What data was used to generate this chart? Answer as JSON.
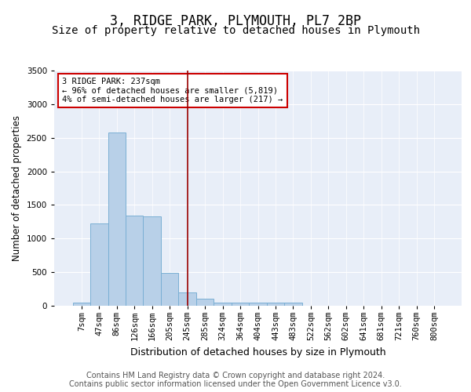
{
  "title": "3, RIDGE PARK, PLYMOUTH, PL7 2BP",
  "subtitle": "Size of property relative to detached houses in Plymouth",
  "xlabel": "Distribution of detached houses by size in Plymouth",
  "ylabel": "Number of detached properties",
  "categories": [
    "7sqm",
    "47sqm",
    "86sqm",
    "126sqm",
    "166sqm",
    "205sqm",
    "245sqm",
    "285sqm",
    "324sqm",
    "364sqm",
    "404sqm",
    "443sqm",
    "483sqm",
    "522sqm",
    "562sqm",
    "602sqm",
    "641sqm",
    "681sqm",
    "721sqm",
    "760sqm",
    "800sqm"
  ],
  "values": [
    50,
    1230,
    2580,
    1340,
    1330,
    495,
    195,
    105,
    50,
    50,
    45,
    45,
    45,
    0,
    0,
    0,
    0,
    0,
    0,
    0,
    0
  ],
  "bar_color": "#b8d0e8",
  "bar_edge_color": "#7aafd4",
  "vline_x_index": 6,
  "vline_color": "#990000",
  "annotation_text": "3 RIDGE PARK: 237sqm\n← 96% of detached houses are smaller (5,819)\n4% of semi-detached houses are larger (217) →",
  "annotation_box_facecolor": "#ffffff",
  "annotation_box_edgecolor": "#cc0000",
  "ylim": [
    0,
    3500
  ],
  "yticks": [
    0,
    500,
    1000,
    1500,
    2000,
    2500,
    3000,
    3500
  ],
  "plot_bg_color": "#e8eef8",
  "footer_line1": "Contains HM Land Registry data © Crown copyright and database right 2024.",
  "footer_line2": "Contains public sector information licensed under the Open Government Licence v3.0.",
  "title_fontsize": 12,
  "subtitle_fontsize": 10,
  "xlabel_fontsize": 9,
  "ylabel_fontsize": 8.5,
  "tick_fontsize": 7.5,
  "footer_fontsize": 7,
  "annot_fontsize": 7.5
}
